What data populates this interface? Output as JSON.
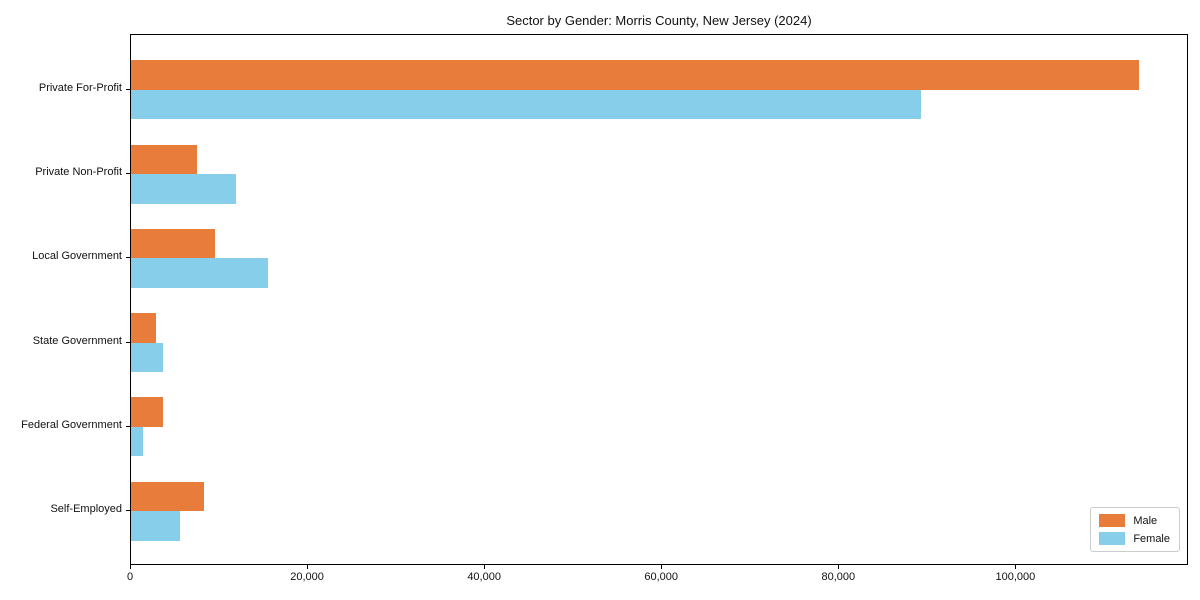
{
  "chart_data": {
    "type": "bar",
    "orientation": "horizontal",
    "title": "Sector by Gender: Morris County, New Jersey (2024)",
    "xlabel": "",
    "ylabel": "",
    "categories": [
      "Private For-Profit",
      "Private Non-Profit",
      "Local Government",
      "State Government",
      "Federal Government",
      "Self-Employed"
    ],
    "series": [
      {
        "name": "Male",
        "color": "#e87d3b",
        "values": [
          113800,
          7400,
          9500,
          2800,
          3600,
          8300
        ]
      },
      {
        "name": "Female",
        "color": "#87ceeb",
        "values": [
          89200,
          11900,
          15500,
          3600,
          1400,
          5500
        ]
      }
    ],
    "xlim": [
      0,
      119500
    ],
    "xticks": [
      {
        "value": 0,
        "label": "0"
      },
      {
        "value": 20000,
        "label": "20,000"
      },
      {
        "value": 40000,
        "label": "40,000"
      },
      {
        "value": 60000,
        "label": "60,000"
      },
      {
        "value": 80000,
        "label": "80,000"
      },
      {
        "value": 100000,
        "label": "100,000"
      }
    ],
    "grid": false,
    "legend_position": "lower right"
  }
}
